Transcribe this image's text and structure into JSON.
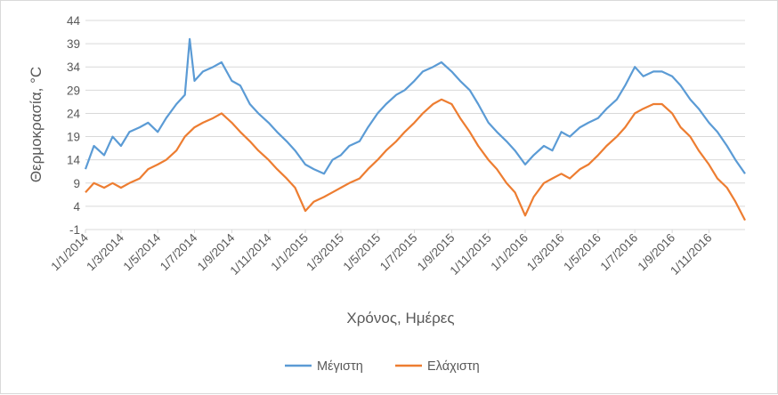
{
  "chart_data": {
    "type": "line",
    "xlabel": "Χρόνος, Ημέρες",
    "ylabel": "Θερμοκρασία, °C",
    "ylim": [
      -1,
      44
    ],
    "y_ticks": [
      "-1",
      "4",
      "9",
      "14",
      "19",
      "24",
      "29",
      "34",
      "39",
      "44"
    ],
    "x_range": [
      "2014-01-01",
      "2016-12-31"
    ],
    "x_tick_labels": [
      "1/1/2014",
      "1/3/2014",
      "1/5/2014",
      "1/7/2014",
      "1/9/2014",
      "1/11/2014",
      "1/1/2015",
      "1/3/2015",
      "1/5/2015",
      "1/7/2015",
      "1/9/2015",
      "1/11/2015",
      "1/1/2016",
      "1/3/2016",
      "1/5/2016",
      "1/7/2016",
      "1/9/2016",
      "1/11/2016"
    ],
    "grid": "horizontal",
    "legend_position": "bottom",
    "series": [
      {
        "name": "Μέγιστη",
        "color": "#5b9bd5",
        "x": [
          "2014-01-01",
          "2014-01-15",
          "2014-02-01",
          "2014-02-15",
          "2014-03-01",
          "2014-03-15",
          "2014-04-01",
          "2014-04-15",
          "2014-05-01",
          "2014-05-15",
          "2014-06-01",
          "2014-06-15",
          "2014-06-23",
          "2014-07-01",
          "2014-07-15",
          "2014-08-01",
          "2014-08-15",
          "2014-09-01",
          "2014-09-15",
          "2014-10-01",
          "2014-10-15",
          "2014-11-01",
          "2014-11-15",
          "2014-12-01",
          "2014-12-15",
          "2015-01-01",
          "2015-01-15",
          "2015-02-01",
          "2015-02-15",
          "2015-03-01",
          "2015-03-15",
          "2015-04-01",
          "2015-04-15",
          "2015-05-01",
          "2015-05-15",
          "2015-06-01",
          "2015-06-15",
          "2015-07-01",
          "2015-07-15",
          "2015-08-01",
          "2015-08-15",
          "2015-09-01",
          "2015-09-15",
          "2015-10-01",
          "2015-10-15",
          "2015-11-01",
          "2015-11-15",
          "2015-12-01",
          "2015-12-15",
          "2016-01-01",
          "2016-01-15",
          "2016-02-01",
          "2016-02-15",
          "2016-03-01",
          "2016-03-15",
          "2016-04-01",
          "2016-04-15",
          "2016-05-01",
          "2016-05-15",
          "2016-06-01",
          "2016-06-15",
          "2016-07-01",
          "2016-07-15",
          "2016-08-01",
          "2016-08-15",
          "2016-09-01",
          "2016-09-15",
          "2016-10-01",
          "2016-10-15",
          "2016-11-01",
          "2016-11-15",
          "2016-12-01",
          "2016-12-15",
          "2016-12-31"
        ],
        "values": [
          12,
          17,
          15,
          19,
          17,
          20,
          21,
          22,
          20,
          23,
          26,
          28,
          40,
          31,
          33,
          34,
          35,
          31,
          30,
          26,
          24,
          22,
          20,
          18,
          16,
          13,
          12,
          11,
          14,
          15,
          17,
          18,
          21,
          24,
          26,
          28,
          29,
          31,
          33,
          34,
          35,
          33,
          31,
          29,
          26,
          22,
          20,
          18,
          16,
          13,
          15,
          17,
          16,
          20,
          19,
          21,
          22,
          23,
          25,
          27,
          30,
          34,
          32,
          33,
          33,
          32,
          30,
          27,
          25,
          22,
          20,
          17,
          14,
          11
        ]
      },
      {
        "name": "Ελάχιστη",
        "color": "#ed7d31",
        "x": [
          "2014-01-01",
          "2014-01-15",
          "2014-02-01",
          "2014-02-15",
          "2014-03-01",
          "2014-03-15",
          "2014-04-01",
          "2014-04-15",
          "2014-05-01",
          "2014-05-15",
          "2014-06-01",
          "2014-06-15",
          "2014-07-01",
          "2014-07-15",
          "2014-08-01",
          "2014-08-15",
          "2014-09-01",
          "2014-09-15",
          "2014-10-01",
          "2014-10-15",
          "2014-11-01",
          "2014-11-15",
          "2014-12-01",
          "2014-12-15",
          "2015-01-01",
          "2015-01-15",
          "2015-02-01",
          "2015-02-15",
          "2015-03-01",
          "2015-03-15",
          "2015-04-01",
          "2015-04-15",
          "2015-05-01",
          "2015-05-15",
          "2015-06-01",
          "2015-06-15",
          "2015-07-01",
          "2015-07-15",
          "2015-08-01",
          "2015-08-15",
          "2015-09-01",
          "2015-09-15",
          "2015-10-01",
          "2015-10-15",
          "2015-11-01",
          "2015-11-15",
          "2015-12-01",
          "2015-12-15",
          "2016-01-01",
          "2016-01-15",
          "2016-02-01",
          "2016-02-15",
          "2016-03-01",
          "2016-03-15",
          "2016-04-01",
          "2016-04-15",
          "2016-05-01",
          "2016-05-15",
          "2016-06-01",
          "2016-06-15",
          "2016-07-01",
          "2016-07-15",
          "2016-08-01",
          "2016-08-15",
          "2016-09-01",
          "2016-09-15",
          "2016-10-01",
          "2016-10-15",
          "2016-11-01",
          "2016-11-15",
          "2016-12-01",
          "2016-12-15",
          "2016-12-31"
        ],
        "values": [
          7,
          9,
          8,
          9,
          8,
          9,
          10,
          12,
          13,
          14,
          16,
          19,
          21,
          22,
          23,
          24,
          22,
          20,
          18,
          16,
          14,
          12,
          10,
          8,
          3,
          5,
          6,
          7,
          8,
          9,
          10,
          12,
          14,
          16,
          18,
          20,
          22,
          24,
          26,
          27,
          26,
          23,
          20,
          17,
          14,
          12,
          9,
          7,
          2,
          6,
          9,
          10,
          11,
          10,
          12,
          13,
          15,
          17,
          19,
          21,
          24,
          25,
          26,
          26,
          24,
          21,
          19,
          16,
          13,
          10,
          8,
          5,
          1
        ]
      }
    ]
  }
}
